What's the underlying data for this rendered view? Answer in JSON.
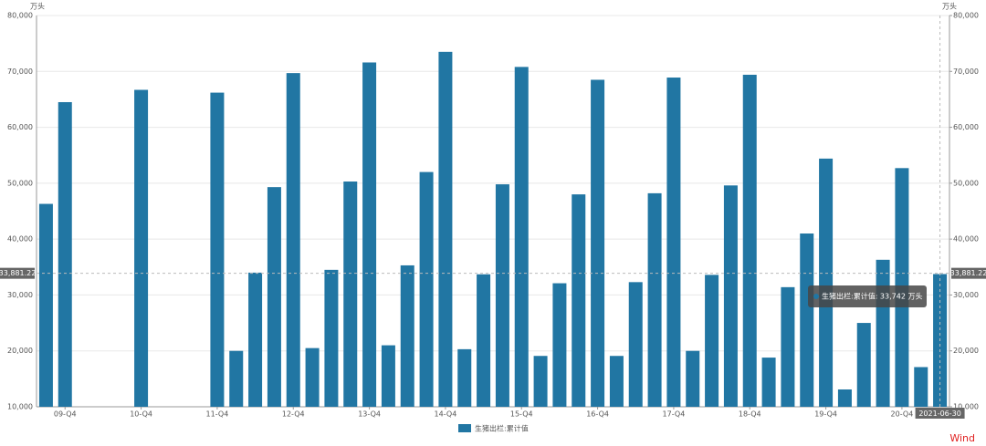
{
  "chart_data": {
    "type": "bar",
    "y_unit": "万头",
    "y2_unit": "万头",
    "categories": [
      null,
      "09-Q4",
      null,
      null,
      null,
      "10-Q4",
      null,
      null,
      null,
      "11-Q4",
      null,
      null,
      null,
      "12-Q4",
      null,
      null,
      null,
      "13-Q4",
      null,
      null,
      null,
      "14-Q4",
      null,
      null,
      null,
      "15-Q4",
      null,
      null,
      null,
      "16-Q4",
      null,
      null,
      null,
      "17-Q4",
      null,
      null,
      null,
      "18-Q4",
      null,
      null,
      null,
      "19-Q4",
      null,
      null,
      null,
      "20-Q4",
      null,
      "2021-06-30"
    ],
    "series": [
      {
        "name": "生猪出栏:累计值",
        "color": "#2176a3",
        "values": [
          46300,
          64500,
          null,
          null,
          null,
          66700,
          null,
          null,
          null,
          66200,
          20000,
          34000,
          49300,
          69700,
          20500,
          34500,
          50300,
          71600,
          21000,
          35300,
          52000,
          73500,
          20300,
          33700,
          49800,
          70800,
          19100,
          32100,
          48000,
          68500,
          19100,
          32300,
          48200,
          68900,
          20000,
          33600,
          49600,
          69400,
          18800,
          31400,
          41000,
          54400,
          13100,
          25000,
          36300,
          52700,
          17100,
          33742
        ]
      }
    ],
    "ylim": [
      10000,
      80000
    ],
    "yticks": [
      {
        "value": 10000,
        "label": "10,000"
      },
      {
        "value": 20000,
        "label": "20,000"
      },
      {
        "value": 30000,
        "label": "30,000"
      },
      {
        "value": 40000,
        "label": "40,000"
      },
      {
        "value": 50000,
        "label": "50,000"
      },
      {
        "value": 60000,
        "label": "60,000"
      },
      {
        "value": 70000,
        "label": "70,000"
      },
      {
        "value": 80000,
        "label": "80,000"
      }
    ],
    "y2lim": [
      10000,
      80000
    ],
    "y2ticks": [
      {
        "value": 10000,
        "label": "10,000"
      },
      {
        "value": 20000,
        "label": "20,000"
      },
      {
        "value": 30000,
        "label": "30,000"
      },
      {
        "value": 40000,
        "label": "40,000"
      },
      {
        "value": 50000,
        "label": "50,000"
      },
      {
        "value": 60000,
        "label": "60,000"
      },
      {
        "value": 70000,
        "label": "70,000"
      },
      {
        "value": 80000,
        "label": "80,000"
      }
    ],
    "grid": true,
    "crosshair": {
      "value": 33881.22,
      "label": "33,881.22"
    },
    "tooltip": "生猪出栏:累计值: 33,742 万头",
    "watermark": "Wind"
  }
}
